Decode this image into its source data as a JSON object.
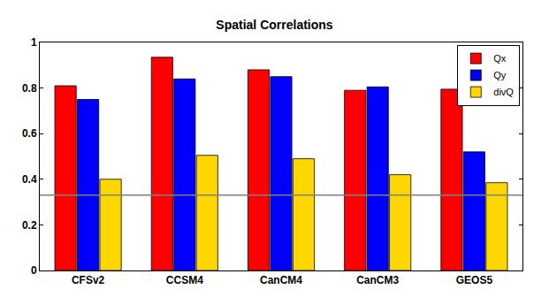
{
  "chart_data": {
    "type": "bar",
    "title": "Spatial Correlations",
    "categories": [
      "CFSv2",
      "CCSM4",
      "CanCM4",
      "CanCM3",
      "GEOS5"
    ],
    "series": [
      {
        "name": "Qx",
        "color": "#ff0000",
        "values": [
          0.81,
          0.935,
          0.88,
          0.79,
          0.795
        ]
      },
      {
        "name": "Qy",
        "color": "#0000ff",
        "values": [
          0.75,
          0.84,
          0.85,
          0.805,
          0.52
        ]
      },
      {
        "name": "divQ",
        "color": "#ffd700",
        "values": [
          0.4,
          0.505,
          0.49,
          0.42,
          0.385
        ]
      }
    ],
    "hline": 0.33,
    "ylim": [
      0,
      1
    ],
    "yticks": [
      0,
      0.2,
      0.4,
      0.6,
      0.8,
      1
    ],
    "grid": false,
    "legend": "top-right"
  }
}
